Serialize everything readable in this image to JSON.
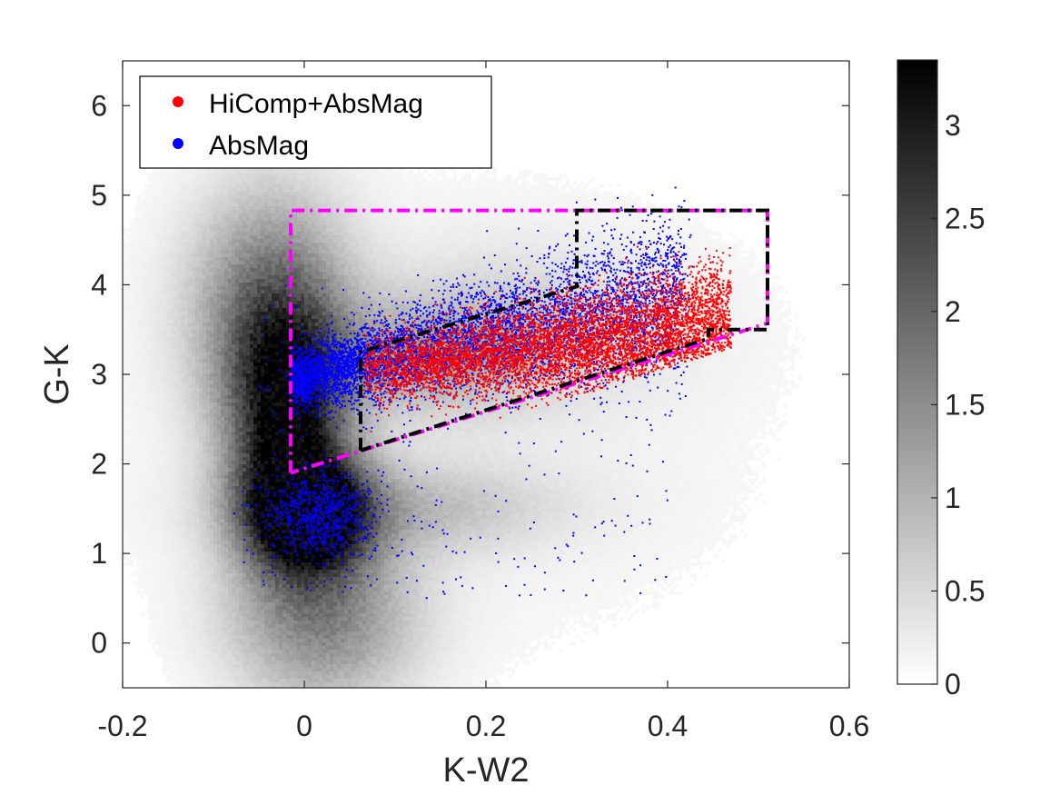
{
  "chart_data": {
    "type": "scatter",
    "xlabel": "K-W2",
    "ylabel": "G-K",
    "xlim": [
      -0.2,
      0.6
    ],
    "ylim": [
      -0.5,
      6.5
    ],
    "x_ticks": [
      "-0.2",
      "0",
      "0.2",
      "0.4",
      "0.6"
    ],
    "x_tick_values": [
      -0.2,
      0,
      0.2,
      0.4,
      0.6
    ],
    "y_ticks": [
      "0",
      "1",
      "2",
      "3",
      "4",
      "5",
      "6"
    ],
    "y_tick_values": [
      0,
      1,
      2,
      3,
      4,
      5,
      6
    ],
    "legend": {
      "placement": "top-left",
      "entries": [
        {
          "label": "HiComp+AbsMag",
          "color": "#ff0000"
        },
        {
          "label": "AbsMag",
          "color": "#0000ff"
        }
      ]
    },
    "colorbar": {
      "ticks": [
        "0",
        "0.5",
        "1",
        "1.5",
        "2",
        "2.5",
        "3"
      ],
      "tick_values": [
        0,
        0.5,
        1,
        1.5,
        2,
        2.5,
        3
      ],
      "range": [
        0,
        3.35
      ],
      "colormap": "white-to-black"
    },
    "background_density": {
      "description_free": true,
      "clumps": [
        {
          "x": 0.005,
          "y": 1.45,
          "sx": 0.045,
          "sy": 0.45,
          "weight": 1.0
        },
        {
          "x": -0.02,
          "y": 2.5,
          "sx": 0.045,
          "sy": 0.9,
          "weight": 0.85
        },
        {
          "x": -0.04,
          "y": 3.8,
          "sx": 0.06,
          "sy": 0.9,
          "weight": 0.45
        },
        {
          "x": 0.02,
          "y": 0.3,
          "sx": 0.07,
          "sy": 0.7,
          "weight": 0.45
        },
        {
          "x": 0.13,
          "y": 3.2,
          "sx": 0.09,
          "sy": 0.45,
          "weight": 0.25
        },
        {
          "x": 0.1,
          "y": 1.5,
          "sx": 0.12,
          "sy": 0.35,
          "weight": 0.22
        },
        {
          "x": 0.25,
          "y": 3.6,
          "sx": 0.12,
          "sy": 0.6,
          "weight": 0.12
        }
      ]
    },
    "series": [
      {
        "name": "AbsMag",
        "color": "#0000ff",
        "ridge": {
          "x0": -0.01,
          "y0": 2.95,
          "slope": 2.3,
          "x_range": [
            -0.01,
            0.42
          ],
          "spread": 0.28
        },
        "clump": {
          "x": 0.015,
          "y": 1.45,
          "sx": 0.03,
          "sy": 0.25
        },
        "count_ridge": 6000,
        "count_clump": 900,
        "count_scatter": 350
      },
      {
        "name": "HiComp+AbsMag",
        "color": "#ff0000",
        "ridge": {
          "x0": 0.065,
          "y0": 3.05,
          "slope": 2.2,
          "x_range": [
            0.065,
            0.47
          ],
          "spread": 0.22
        },
        "count_ridge": 6500
      }
    ],
    "selection_boxes": [
      {
        "name": "magenta-selection",
        "color": "#ff00ff",
        "style": "dash-dot",
        "points": [
          [
            -0.015,
            1.9
          ],
          [
            -0.015,
            4.83
          ],
          [
            0.51,
            4.83
          ],
          [
            0.51,
            3.57
          ],
          [
            -0.015,
            1.9
          ]
        ]
      },
      {
        "name": "black-selection",
        "color": "#000000",
        "style": "dash-dot",
        "points": [
          [
            0.062,
            2.15
          ],
          [
            0.062,
            3.25
          ],
          [
            0.3,
            3.98
          ],
          [
            0.3,
            4.83
          ],
          [
            0.51,
            4.83
          ],
          [
            0.51,
            3.5
          ],
          [
            0.445,
            3.5
          ],
          [
            0.445,
            3.4
          ],
          [
            0.062,
            2.15
          ]
        ]
      }
    ]
  }
}
